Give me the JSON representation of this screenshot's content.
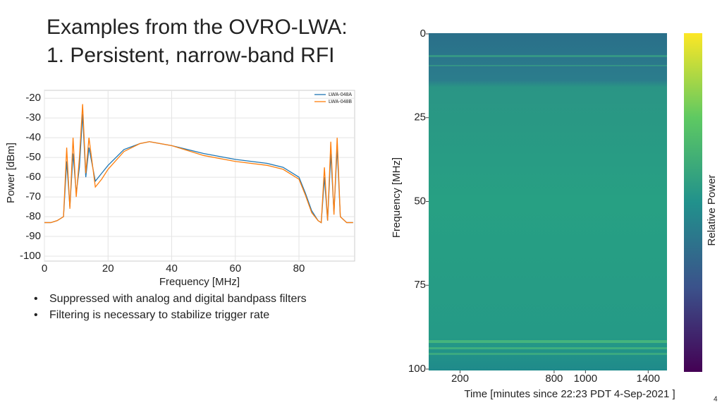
{
  "title": [
    "Examples from the OVRO-LWA:",
    "1. Persistent, narrow-band RFI"
  ],
  "bullets": [
    "Suppressed with analog and digital bandpass filters",
    "Filtering is necessary to stabilize trigger rate"
  ],
  "page_number": "4",
  "chart_data": [
    {
      "type": "line",
      "xlabel": "Frequency [MHz]",
      "ylabel": "Power [dBm]",
      "xlim": [
        0,
        97.5
      ],
      "ylim": [
        -102.5,
        -16
      ],
      "xticks": [
        0,
        20,
        40,
        60,
        80
      ],
      "yticks": [
        -20,
        -30,
        -40,
        -50,
        -60,
        -70,
        -80,
        -90,
        -100
      ],
      "grid": true,
      "legend": "top-right",
      "x": [
        0,
        2,
        4,
        6,
        7,
        8,
        9,
        10,
        11,
        12,
        13,
        14,
        16,
        18,
        20,
        25,
        30,
        33,
        40,
        50,
        60,
        70,
        75,
        80,
        82,
        84,
        86,
        87,
        88,
        89,
        90,
        91,
        92,
        93,
        95,
        97
      ],
      "series": [
        {
          "name": "LWA-048A",
          "color": "#1f77b4",
          "values": [
            -83,
            -83,
            -82,
            -80,
            -52,
            -75,
            -48,
            -68,
            -55,
            -28,
            -60,
            -45,
            -62,
            -58,
            -54,
            -46,
            -43,
            -42,
            -44,
            -48,
            -51,
            -53,
            -55,
            -60,
            -68,
            -77,
            -82,
            -83,
            -60,
            -82,
            -48,
            -78,
            -45,
            -80,
            -83,
            -83
          ]
        },
        {
          "name": "LWA-048B",
          "color": "#ff7f0e",
          "values": [
            -83,
            -83,
            -82,
            -80,
            -45,
            -76,
            -40,
            -70,
            -50,
            -23,
            -58,
            -40,
            -65,
            -61,
            -56,
            -47,
            -43,
            -42,
            -44,
            -49,
            -52,
            -54,
            -56,
            -61,
            -69,
            -78,
            -82,
            -83,
            -55,
            -82,
            -42,
            -79,
            -40,
            -80,
            -83,
            -83
          ]
        }
      ]
    },
    {
      "type": "heatmap",
      "xlabel": "Time [minutes since 22:23 PDT 4-Sep-2021 ]",
      "ylabel": "Frequency [MHz]",
      "colorbar_label": "Relative Power",
      "xlim": [
        0,
        1520
      ],
      "ylim": [
        0,
        100
      ],
      "xticks": [
        200,
        800,
        1000,
        1400
      ],
      "yticks": [
        0,
        25,
        50,
        75,
        100
      ]
    }
  ]
}
